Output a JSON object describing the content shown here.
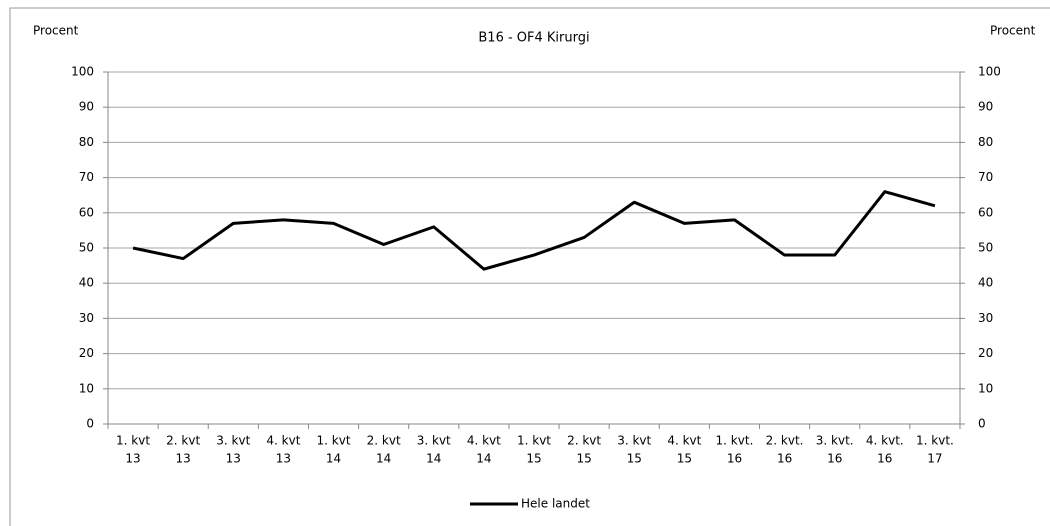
{
  "chart_data": {
    "type": "line",
    "title": "B16 - OF4 Kirurgi",
    "y_label": "Procent",
    "y2_label": "Procent",
    "categories": [
      [
        "1. kvt",
        "13"
      ],
      [
        "2. kvt",
        "13"
      ],
      [
        "3. kvt",
        "13"
      ],
      [
        "4. kvt",
        "13"
      ],
      [
        "1. kvt",
        "14"
      ],
      [
        "2. kvt",
        "14"
      ],
      [
        "3. kvt",
        "14"
      ],
      [
        "4. kvt",
        "14"
      ],
      [
        "1. kvt",
        "15"
      ],
      [
        "2. kvt",
        "15"
      ],
      [
        "3. kvt",
        "15"
      ],
      [
        "4. kvt",
        "15"
      ],
      [
        "1. kvt.",
        "16"
      ],
      [
        "2. kvt.",
        "16"
      ],
      [
        "3. kvt.",
        "16"
      ],
      [
        "4. kvt.",
        "16"
      ],
      [
        "1. kvt.",
        "17"
      ]
    ],
    "series": [
      {
        "name": "Hele landet",
        "color": "#000000",
        "values": [
          50,
          47,
          57,
          58,
          57,
          51,
          56,
          44,
          48,
          53,
          63,
          57,
          58,
          48,
          48,
          66,
          62
        ]
      }
    ],
    "ylim": [
      0,
      100
    ],
    "yticks": [
      0,
      10,
      20,
      30,
      40,
      50,
      60,
      70,
      80,
      90,
      100
    ],
    "y2lim": [
      0,
      100
    ],
    "y2ticks": [
      0,
      10,
      20,
      30,
      40,
      50,
      60,
      70,
      80,
      90,
      100
    ],
    "grid": true,
    "legend": "bottom"
  }
}
